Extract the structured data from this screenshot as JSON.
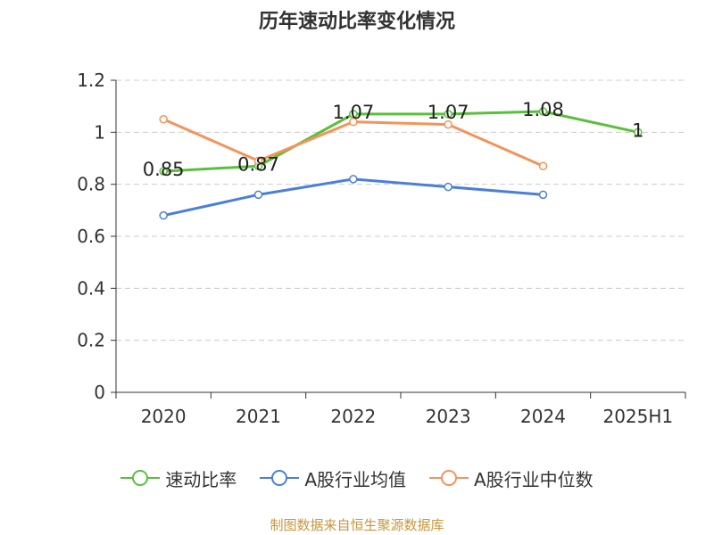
{
  "chart_data": {
    "type": "line",
    "title": "历年速动比率变化情况",
    "categories": [
      "2020",
      "2021",
      "2022",
      "2023",
      "2024",
      "2025H1"
    ],
    "ylim": [
      0,
      1.2
    ],
    "yticks": [
      "0",
      "0.2",
      "0.4",
      "0.6",
      "0.8",
      "1",
      "1.2"
    ],
    "grid": true,
    "legend_position": "bottom",
    "series": [
      {
        "name": "速动比率",
        "color": "#5ac03c",
        "values": [
          0.85,
          0.87,
          1.07,
          1.07,
          1.08,
          1
        ],
        "labels": [
          "0.85",
          "0.87",
          "1.07",
          "1.07",
          "1.08",
          "1"
        ]
      },
      {
        "name": "A股行业均值",
        "color": "#4a7fd9",
        "values": [
          0.68,
          0.76,
          0.82,
          0.79,
          0.76,
          null
        ]
      },
      {
        "name": "A股行业中位数",
        "color": "#f4935a",
        "values": [
          1.05,
          0.89,
          1.04,
          1.03,
          0.87,
          null
        ]
      }
    ]
  },
  "source": "制图数据来自恒生聚源数据库"
}
